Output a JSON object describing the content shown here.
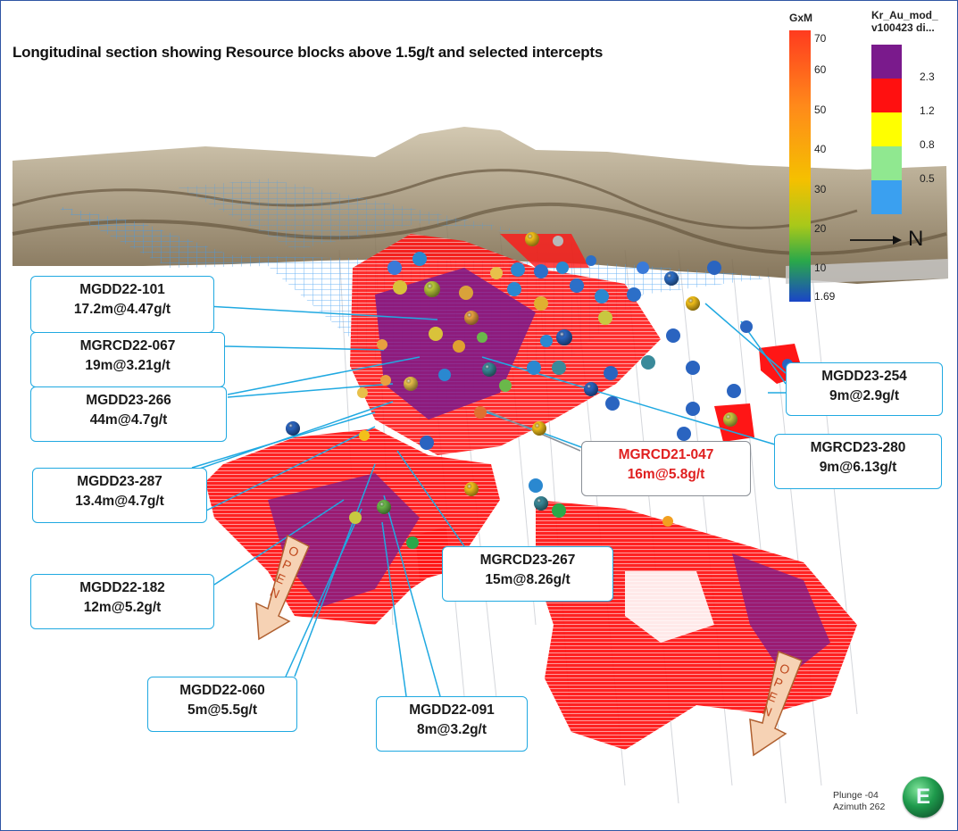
{
  "title": "Longitudinal section showing Resource blocks above 1.5g/t and selected intercepts",
  "legend_gxm": {
    "title": "GxM",
    "ticks": [
      "70",
      "60",
      "50",
      "40",
      "30",
      "20",
      "10",
      "1.69"
    ]
  },
  "legend_model": {
    "title_line1": "Kr_Au_mod_",
    "title_line2": "v100423 di...",
    "ticks": [
      "2.3",
      "1.2",
      "0.8",
      "0.5"
    ],
    "colors": [
      "#7a1a8c",
      "#ff1010",
      "#ffff00",
      "#90e890",
      "#3aa0f0"
    ]
  },
  "north": {
    "label": "N"
  },
  "view_info": {
    "plunge": "Plunge -04",
    "azimuth": "Azimuth 262"
  },
  "logo": {
    "letter": "E"
  },
  "open_label": "OPEN",
  "callouts": [
    {
      "hole": "MGDD22-101",
      "intercept": "17.2m@4.47g/t"
    },
    {
      "hole": "MGRCD22-067",
      "intercept": "19m@3.21g/t"
    },
    {
      "hole": "MGDD23-266",
      "intercept": "44m@4.7g/t"
    },
    {
      "hole": "MGDD23-287",
      "intercept": "13.4m@4.7g/t"
    },
    {
      "hole": "MGDD22-182",
      "intercept": "12m@5.2g/t"
    },
    {
      "hole": "MGDD22-060",
      "intercept": "5m@5.5g/t"
    },
    {
      "hole": "MGDD22-091",
      "intercept": "8m@3.2g/t"
    },
    {
      "hole": "MGRCD23-267",
      "intercept": "15m@8.26g/t"
    },
    {
      "hole": "MGRCD21-047",
      "intercept": "16m@5.8g/t"
    },
    {
      "hole": "MGRCD23-280",
      "intercept": "9m@6.13g/t"
    },
    {
      "hole": "MGDD23-254",
      "intercept": "9m@2.9g/t"
    }
  ]
}
